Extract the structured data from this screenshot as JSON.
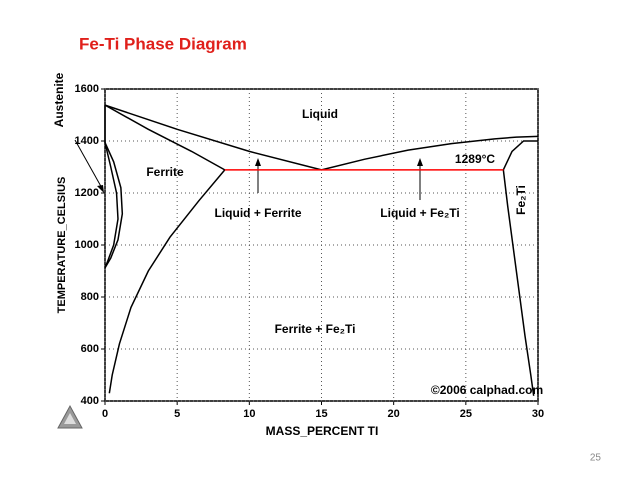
{
  "title": "Fe-Ti Phase Diagram",
  "page_number": "25",
  "chart_data": {
    "type": "line",
    "xlabel": "MASS_PERCENT TI",
    "ylabel": "TEMPERATURE_CELSIUS",
    "xlim": [
      0,
      30
    ],
    "ylim": [
      400,
      1600
    ],
    "xticks": [
      0,
      5,
      10,
      15,
      20,
      25,
      30
    ],
    "yticks": [
      400,
      600,
      800,
      1000,
      1200,
      1400,
      1600
    ],
    "grid": true,
    "annotations": [
      "Liquid",
      "Ferrite",
      "1289°C",
      "Liquid + Ferrite",
      "Liquid + Fe₂Ti",
      "Ferrite + Fe₂Ti",
      "Fe₂Ti",
      "Austenite",
      "©2006 calphad.com"
    ],
    "series": [
      {
        "color": "#000000",
        "x": [
          0,
          5,
          10,
          15
        ],
        "values": [
          1538,
          1445,
          1360,
          1289
        ]
      },
      {
        "color": "#000000",
        "x": [
          15,
          18,
          21,
          24,
          27,
          28.5,
          30
        ],
        "values": [
          1289,
          1330,
          1365,
          1390,
          1408,
          1415,
          1418
        ]
      },
      {
        "color": "#000000",
        "x": [
          0,
          3,
          6,
          8.3
        ],
        "values": [
          1538,
          1445,
          1360,
          1289
        ]
      },
      {
        "color": "#000000",
        "x": [
          0,
          0,
          0.6,
          1.1,
          1.2,
          0.9,
          0.4,
          0
        ],
        "values": [
          1538,
          1394,
          1320,
          1220,
          1120,
          1020,
          950,
          912
        ]
      },
      {
        "color": "#000000",
        "x": [
          0,
          0.4,
          0.8,
          0.9,
          0.6,
          0.2,
          0
        ],
        "values": [
          1394,
          1300,
          1200,
          1100,
          1000,
          940,
          912
        ]
      },
      {
        "color": "#000000",
        "x": [
          8.3,
          6.5,
          4.5,
          3,
          1.8,
          1,
          0.5,
          0.3
        ],
        "values": [
          1289,
          1170,
          1030,
          900,
          760,
          620,
          500,
          430
        ]
      },
      {
        "color": "#000000",
        "x": [
          27.6,
          28.2,
          29,
          30
        ],
        "values": [
          1289,
          1360,
          1400,
          1400
        ]
      },
      {
        "color": "#000000",
        "x": [
          27.6,
          27.9,
          28.5,
          29.1,
          29.5,
          29.7
        ],
        "values": [
          1289,
          1150,
          900,
          650,
          500,
          420
        ]
      },
      {
        "color": "#ff0000",
        "x": [
          8.3,
          27.6
        ],
        "values": [
          1289,
          1289
        ]
      }
    ]
  }
}
